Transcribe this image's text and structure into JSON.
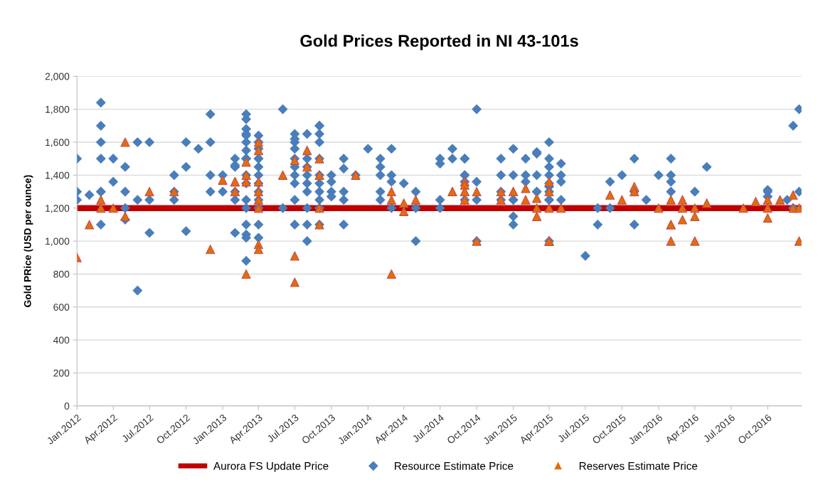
{
  "chart_data": {
    "type": "scatter",
    "title": "Gold Prices Reported in NI 43-101s",
    "ylabel": "Gold PRice (USD per ounce)",
    "xlim": [
      "2012-01-01",
      "2016-12-25"
    ],
    "xticks": [
      {
        "value": "2012-01",
        "label": "Jan.2012"
      },
      {
        "value": "2012-04",
        "label": "Apr.2012"
      },
      {
        "value": "2012-07",
        "label": "Jul.2012"
      },
      {
        "value": "2012-10",
        "label": "Oct.2012"
      },
      {
        "value": "2013-01",
        "label": "Jan.2013"
      },
      {
        "value": "2013-04",
        "label": "Apr.2013"
      },
      {
        "value": "2013-07",
        "label": "Jul.2013"
      },
      {
        "value": "2013-10",
        "label": "Oct.2013"
      },
      {
        "value": "2014-01",
        "label": "Jan.2014"
      },
      {
        "value": "2014-04",
        "label": "Apr.2014"
      },
      {
        "value": "2014-07",
        "label": "Jul.2014"
      },
      {
        "value": "2014-10",
        "label": "Oct.2014"
      },
      {
        "value": "2015-01",
        "label": "Jan.2015"
      },
      {
        "value": "2015-04",
        "label": "Apr.2015"
      },
      {
        "value": "2015-07",
        "label": "Jul.2015"
      },
      {
        "value": "2015-10",
        "label": "Oct.2015"
      },
      {
        "value": "2016-01",
        "label": "Jan.2016"
      },
      {
        "value": "2016-04",
        "label": "Apr.2016"
      },
      {
        "value": "2016-07",
        "label": "Jul.2016"
      },
      {
        "value": "2016-10",
        "label": "Oct.2016"
      }
    ],
    "ylim": [
      0,
      2000
    ],
    "yticks": [
      0,
      200,
      400,
      600,
      800,
      {
        "value": 1000,
        "label": "1,000"
      },
      {
        "value": 1200,
        "label": "1,200"
      },
      {
        "value": 1400,
        "label": "1,400"
      },
      {
        "value": 1600,
        "label": "1,600"
      },
      {
        "value": 1800,
        "label": "1,800"
      },
      {
        "value": 2000,
        "label": "2,000"
      }
    ],
    "grid": "y",
    "legend": "bottom",
    "series": [
      {
        "name": "Aurora FS Update Price",
        "type": "line",
        "color": "#c00000",
        "marker": "none",
        "line_style": "solid",
        "x": [
          "2012-01-01",
          "2016-12-25"
        ],
        "values": [
          1200,
          1200
        ]
      },
      {
        "name": "Resource Estimate Price",
        "color": "#4a7ebb",
        "marker": "diamond",
        "x": [
          "2012-01",
          "2012-01",
          "2012-01",
          "2012-02",
          "2012-03",
          "2012-03",
          "2012-03",
          "2012-03",
          "2012-03",
          "2012-03",
          "2012-03",
          "2012-04",
          "2012-04",
          "2012-05",
          "2012-05",
          "2012-05",
          "2012-05",
          "2012-06",
          "2012-06",
          "2012-06",
          "2012-07",
          "2012-07",
          "2012-07",
          "2012-09",
          "2012-09",
          "2012-09",
          "2012-10",
          "2012-10",
          "2012-10",
          "2012-11",
          "2012-12",
          "2012-12",
          "2012-12",
          "2012-12",
          "2013-01",
          "2013-01",
          "2013-02",
          "2013-02",
          "2013-02",
          "2013-02",
          "2013-02",
          "2013-02",
          "2013-03",
          "2013-03",
          "2013-03",
          "2013-03",
          "2013-03",
          "2013-03",
          "2013-03",
          "2013-03",
          "2013-03",
          "2013-03",
          "2013-03",
          "2013-03",
          "2013-03",
          "2013-03",
          "2013-03",
          "2013-03",
          "2013-03",
          "2013-03",
          "2013-04",
          "2013-04",
          "2013-04",
          "2013-04",
          "2013-04",
          "2013-04",
          "2013-04",
          "2013-04",
          "2013-04",
          "2013-04",
          "2013-04",
          "2013-04",
          "2013-04",
          "2013-06",
          "2013-06",
          "2013-07",
          "2013-07",
          "2013-07",
          "2013-07",
          "2013-07",
          "2013-07",
          "2013-07",
          "2013-07",
          "2013-07",
          "2013-07",
          "2013-08",
          "2013-08",
          "2013-08",
          "2013-08",
          "2013-08",
          "2013-08",
          "2013-08",
          "2013-08",
          "2013-08",
          "2013-09",
          "2013-09",
          "2013-09",
          "2013-09",
          "2013-09",
          "2013-09",
          "2013-09",
          "2013-09",
          "2013-09",
          "2013-09",
          "2013-09",
          "2013-10",
          "2013-10",
          "2013-10",
          "2013-10",
          "2013-11",
          "2013-11",
          "2013-11",
          "2013-11",
          "2013-11",
          "2013-12",
          "2014-01",
          "2014-02",
          "2014-02",
          "2014-02",
          "2014-02",
          "2014-02",
          "2014-03",
          "2014-03",
          "2014-03",
          "2014-03",
          "2014-04",
          "2014-05",
          "2014-05",
          "2014-05",
          "2014-07",
          "2014-07",
          "2014-07",
          "2014-07",
          "2014-08",
          "2014-08",
          "2014-09",
          "2014-09",
          "2014-09",
          "2014-09",
          "2014-09",
          "2014-09",
          "2014-10",
          "2014-10",
          "2014-10",
          "2014-10",
          "2014-12",
          "2014-12",
          "2014-12",
          "2014-12",
          "2015-01",
          "2015-01",
          "2015-01",
          "2015-01",
          "2015-01",
          "2015-01",
          "2015-02",
          "2015-02",
          "2015-02",
          "2015-03",
          "2015-03",
          "2015-03",
          "2015-03",
          "2015-03",
          "2015-04",
          "2015-04",
          "2015-04",
          "2015-04",
          "2015-04",
          "2015-04",
          "2015-04",
          "2015-04",
          "2015-04",
          "2015-04",
          "2015-05",
          "2015-05",
          "2015-05",
          "2015-05",
          "2015-07",
          "2015-08",
          "2015-08",
          "2015-09",
          "2015-09",
          "2015-10",
          "2015-11",
          "2015-11",
          "2015-11",
          "2015-12",
          "2016-01",
          "2016-02",
          "2016-02",
          "2016-02",
          "2016-02",
          "2016-04",
          "2016-05",
          "2016-10",
          "2016-10",
          "2016-10",
          "2016-11-19",
          "2016-12-04",
          "2016-12-04",
          "2016-12-19",
          "2016-12-19"
        ],
        "values": [
          1500,
          1300,
          1250,
          1280,
          1840,
          1700,
          1600,
          1500,
          1300,
          1300,
          1100,
          1360,
          1500,
          1450,
          1130,
          1300,
          1200,
          1600,
          1250,
          700,
          1250,
          1600,
          1050,
          1250,
          1400,
          1300,
          1600,
          1450,
          1060,
          1560,
          1600,
          1400,
          1300,
          1770,
          1400,
          1300,
          1050,
          1300,
          1450,
          1460,
          1500,
          1250,
          1770,
          880,
          1680,
          1650,
          1740,
          1500,
          1500,
          1500,
          1400,
          1350,
          1250,
          1200,
          1100,
          1040,
          1020,
          1600,
          1550,
          1640,
          1640,
          1600,
          1560,
          1500,
          1500,
          1450,
          1400,
          1350,
          1300,
          1250,
          1200,
          1100,
          1020,
          1800,
          1200,
          1100,
          1600,
          1560,
          1500,
          1450,
          1400,
          1350,
          1650,
          1620,
          1250,
          1650,
          1500,
          1450,
          1400,
          1350,
          1300,
          1200,
          1100,
          1000,
          1700,
          1650,
          1600,
          1700,
          1500,
          1400,
          1350,
          1300,
          1250,
          1200,
          1100,
          1300,
          1270,
          1400,
          1360,
          1300,
          1250,
          1440,
          1500,
          1100,
          1400,
          1560,
          1500,
          1450,
          1300,
          1250,
          1400,
          1400,
          1360,
          1200,
          1560,
          1350,
          1300,
          1200,
          1000,
          1250,
          1200,
          1470,
          1500,
          1500,
          1560,
          1500,
          1500,
          1400,
          1400,
          1360,
          1250,
          1360,
          1250,
          1800,
          1000,
          1500,
          1400,
          1300,
          1250,
          1400,
          1150,
          1100,
          1250,
          1560,
          1250,
          1500,
          1400,
          1360,
          1300,
          1400,
          1540,
          1530,
          1300,
          1350,
          1000,
          1450,
          1600,
          1500,
          1400,
          1250,
          1250,
          1330,
          1300,
          1470,
          1400,
          1360,
          1250,
          910,
          1200,
          1100,
          1200,
          1360,
          1400,
          1500,
          1300,
          1100,
          1250,
          1400,
          1400,
          1360,
          1500,
          1300,
          1300,
          1450,
          1310,
          1270,
          1300,
          1250,
          1700,
          1200,
          1300,
          1800
        ]
      },
      {
        "name": "Reserves Estimate Price",
        "color": "#e46c0a",
        "marker": "triangle",
        "x": [
          "2012-01",
          "2012-02",
          "2012-03",
          "2012-03",
          "2012-04",
          "2012-05",
          "2012-05",
          "2012-07",
          "2012-09",
          "2012-12",
          "2013-01",
          "2013-02",
          "2013-02",
          "2013-02",
          "2013-02",
          "2013-03",
          "2013-03",
          "2013-03",
          "2013-03",
          "2013-04",
          "2013-04",
          "2013-04",
          "2013-04",
          "2013-04",
          "2013-04",
          "2013-04",
          "2013-04",
          "2013-06",
          "2013-07",
          "2013-07",
          "2013-07",
          "2013-08",
          "2013-08",
          "2013-09",
          "2013-09",
          "2013-09",
          "2013-09",
          "2013-12",
          "2014-03",
          "2014-03",
          "2014-03",
          "2014-04",
          "2014-04",
          "2014-05",
          "2014-08",
          "2014-08",
          "2014-09",
          "2014-09",
          "2014-09",
          "2014-09",
          "2014-09",
          "2014-10",
          "2014-10",
          "2014-12",
          "2014-12",
          "2015-01",
          "2015-01",
          "2015-02",
          "2015-02",
          "2015-03",
          "2015-03",
          "2015-03",
          "2015-04",
          "2015-04",
          "2015-04",
          "2015-04",
          "2015-04",
          "2015-04",
          "2015-05",
          "2015-09",
          "2015-10",
          "2015-11",
          "2015-11",
          "2016-01",
          "2016-02",
          "2016-02",
          "2016-02",
          "2016-02",
          "2016-03",
          "2016-03",
          "2016-03",
          "2016-04",
          "2016-04",
          "2016-04",
          "2016-05",
          "2016-08",
          "2016-09",
          "2016-10",
          "2016-10",
          "2016-10",
          "2016-11",
          "2016-12-04",
          "2016-12-04",
          "2016-12-19",
          "2016-12-19"
        ],
        "values": [
          900,
          1100,
          1200,
          1250,
          1200,
          1150,
          1600,
          1300,
          1300,
          950,
          1370,
          1360,
          1360,
          1300,
          1300,
          1360,
          800,
          1480,
          1400,
          1600,
          1550,
          1360,
          1300,
          1250,
          1200,
          980,
          950,
          1400,
          910,
          750,
          1490,
          1550,
          1450,
          1500,
          1400,
          1200,
          1100,
          1400,
          1300,
          800,
          1250,
          1230,
          1180,
          1250,
          1300,
          1300,
          1360,
          1340,
          1300,
          1300,
          1250,
          1300,
          1000,
          1300,
          1250,
          1300,
          1300,
          1320,
          1250,
          1260,
          1200,
          1150,
          1360,
          1300,
          1200,
          1000,
          1000,
          1000,
          1200,
          1280,
          1250,
          1330,
          1300,
          1200,
          1250,
          1100,
          1100,
          1000,
          1250,
          1200,
          1130,
          1150,
          1200,
          1000,
          1230,
          1200,
          1240,
          1250,
          1140,
          1200,
          1250,
          1280,
          1200,
          1200,
          1000
        ]
      }
    ]
  }
}
